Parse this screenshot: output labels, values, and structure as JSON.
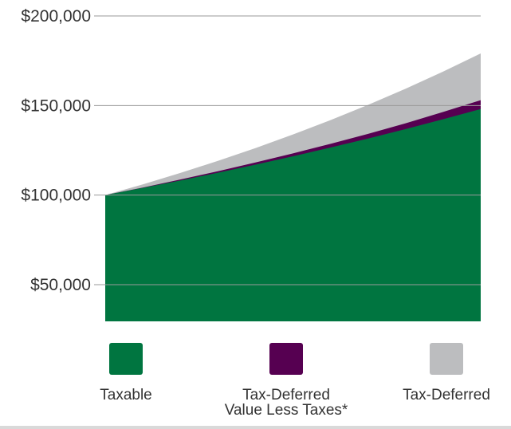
{
  "chart_data": {
    "type": "area",
    "title": "",
    "xlabel": "",
    "ylabel": "",
    "ylim": [
      30000,
      200000
    ],
    "grid": true,
    "legend_position": "bottom",
    "y_ticks": [
      {
        "value": 200000,
        "label": "$200,000"
      },
      {
        "value": 150000,
        "label": "$150,000"
      },
      {
        "value": 100000,
        "label": "$100,000"
      },
      {
        "value": 50000,
        "label": "$50,000"
      }
    ],
    "x": [
      0,
      1,
      2,
      3,
      4,
      5,
      6,
      7,
      8,
      9,
      10
    ],
    "series": [
      {
        "name": "Taxable",
        "color": "#007540",
        "values": [
          100000,
          104000,
          108160,
          112486,
          116986,
          121665,
          126532,
          131593,
          136857,
          142331,
          148024
        ]
      },
      {
        "name": "Tax-Deferred Value Less Taxes*",
        "color": "#560051",
        "values": [
          100000,
          104200,
          108700,
          113300,
          118200,
          123300,
          128600,
          134200,
          140100,
          146400,
          153000
        ]
      },
      {
        "name": "Tax-Deferred",
        "color": "#bcbdbf",
        "values": [
          100000,
          106000,
          112360,
          119102,
          126248,
          133823,
          141852,
          150363,
          159385,
          168948,
          179085
        ]
      }
    ],
    "legend": [
      {
        "lines": [
          "Taxable"
        ],
        "color": "#007540"
      },
      {
        "lines": [
          "Tax-Deferred",
          "Value Less Taxes*"
        ],
        "color": "#560051"
      },
      {
        "lines": [
          "Tax-Deferred"
        ],
        "color": "#bcbdbf"
      }
    ]
  }
}
